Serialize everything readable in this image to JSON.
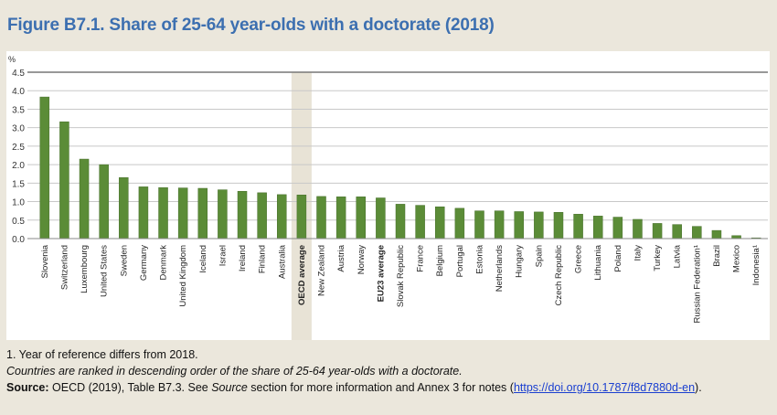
{
  "title": "Figure B7.1. Share of 25-64 year-olds with a doctorate (2018)",
  "chart_data": {
    "type": "bar",
    "title": "Figure B7.1. Share of 25-64 year-olds with a doctorate (2018)",
    "ylabel": "%",
    "ylim": [
      0,
      4.5
    ],
    "yticks": [
      "0.0",
      "0.5",
      "1.0",
      "1.5",
      "2.0",
      "2.5",
      "3.0",
      "3.5",
      "4.0",
      "4.5"
    ],
    "grid": true,
    "highlighted": [
      "OECD average",
      "EU23 average"
    ],
    "bar_color": "#5b8c37",
    "highlight_color": "#e8e3d6",
    "categories": [
      "Slovenia",
      "Switzerland",
      "Luxembourg",
      "United States",
      "Sweden",
      "Germany",
      "Denmark",
      "United Kingdom",
      "Iceland",
      "Israel",
      "Ireland",
      "Finland",
      "Australia",
      "OECD average",
      "New Zealand",
      "Austria",
      "Norway",
      "EU23 average",
      "Slovak Republic",
      "France",
      "Belgium",
      "Portugal",
      "Estonia",
      "Netherlands",
      "Hungary",
      "Spain",
      "Czech Republic",
      "Greece",
      "Lithuania",
      "Poland",
      "Italy",
      "Turkey",
      "Latvia",
      "Russian Federation¹",
      "Brazil",
      "Mexico",
      "Indonesia¹"
    ],
    "values": [
      3.83,
      3.16,
      2.15,
      2.0,
      1.65,
      1.4,
      1.38,
      1.37,
      1.36,
      1.32,
      1.28,
      1.24,
      1.19,
      1.18,
      1.14,
      1.13,
      1.13,
      1.1,
      0.93,
      0.9,
      0.86,
      0.82,
      0.75,
      0.75,
      0.73,
      0.72,
      0.71,
      0.66,
      0.61,
      0.58,
      0.52,
      0.41,
      0.38,
      0.33,
      0.22,
      0.08,
      0.02
    ]
  },
  "notes": {
    "note1": "1. Year of reference differs from 2018.",
    "ranking": "Countries are ranked in descending order of the share of 25-64 year-olds with a doctorate.",
    "source_label": "Source:",
    "source_a": " OECD (2019), Table B7.3. See ",
    "source_italic": "Source",
    "source_b": " section for more information and Annex 3 for notes (",
    "link": "https://doi.org/10.1787/f8d7880d-en",
    "source_c": ")."
  }
}
